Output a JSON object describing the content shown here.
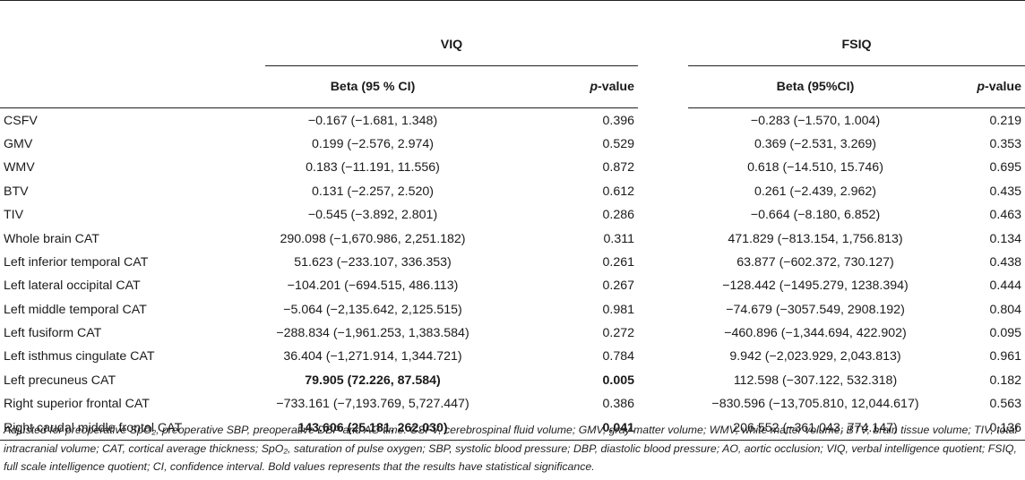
{
  "headers": {
    "group1": "VIQ",
    "group2": "FSIQ",
    "beta1": "Beta (95 % CI)",
    "pvalue1_prefix": "p",
    "pvalue1_suffix": "-value",
    "beta2": "Beta (95%CI)",
    "pvalue2_prefix": "p",
    "pvalue2_suffix": "-value"
  },
  "rows": [
    {
      "label": "CSFV",
      "viq_beta": "−0.167 (−1.681, 1.348)",
      "viq_p": "0.396",
      "fsiq_beta": "−0.283 (−1.570, 1.004)",
      "fsiq_p": "0.219"
    },
    {
      "label": "GMV",
      "viq_beta": "0.199 (−2.576, 2.974)",
      "viq_p": "0.529",
      "fsiq_beta": "0.369 (−2.531, 3.269)",
      "fsiq_p": "0.353"
    },
    {
      "label": "WMV",
      "viq_beta": "0.183 (−11.191, 11.556)",
      "viq_p": "0.872",
      "fsiq_beta": "0.618 (−14.510, 15.746)",
      "fsiq_p": "0.695"
    },
    {
      "label": "BTV",
      "viq_beta": "0.131 (−2.257, 2.520)",
      "viq_p": "0.612",
      "fsiq_beta": "0.261 (−2.439, 2.962)",
      "fsiq_p": "0.435"
    },
    {
      "label": "TIV",
      "viq_beta": "−0.545 (−3.892, 2.801)",
      "viq_p": "0.286",
      "fsiq_beta": "−0.664 (−8.180, 6.852)",
      "fsiq_p": "0.463"
    },
    {
      "label": "Whole brain CAT",
      "viq_beta": "290.098 (−1,670.986, 2,251.182)",
      "viq_p": "0.311",
      "fsiq_beta": "471.829 (−813.154, 1,756.813)",
      "fsiq_p": "0.134"
    },
    {
      "label": "Left inferior temporal CAT",
      "viq_beta": "51.623 (−233.107, 336.353)",
      "viq_p": "0.261",
      "fsiq_beta": "63.877 (−602.372, 730.127)",
      "fsiq_p": "0.438"
    },
    {
      "label": "Left lateral occipital CAT",
      "viq_beta": "−104.201 (−694.515, 486.113)",
      "viq_p": "0.267",
      "fsiq_beta": "−128.442 (−1495.279, 1238.394)",
      "fsiq_p": "0.444"
    },
    {
      "label": "Left middle temporal CAT",
      "viq_beta": "−5.064 (−2,135.642, 2,125.515)",
      "viq_p": "0.981",
      "fsiq_beta": "−74.679 (−3057.549, 2908.192)",
      "fsiq_p": "0.804"
    },
    {
      "label": "Left fusiform CAT",
      "viq_beta": "−288.834 (−1,961.253, 1,383.584)",
      "viq_p": "0.272",
      "fsiq_beta": "−460.896 (−1,344.694, 422.902)",
      "fsiq_p": "0.095"
    },
    {
      "label": "Left isthmus cingulate CAT",
      "viq_beta": "36.404 (−1,271.914, 1,344.721)",
      "viq_p": "0.784",
      "fsiq_beta": "9.942 (−2,023.929, 2,043.813)",
      "fsiq_p": "0.961"
    },
    {
      "label": "Left precuneus CAT",
      "viq_beta": "79.905 (72.226, 87.584)",
      "viq_p": "0.005",
      "fsiq_beta": "112.598 (−307.122, 532.318)",
      "fsiq_p": "0.182",
      "bold_viq": true
    },
    {
      "label": "Right superior frontal CAT",
      "viq_beta": "−733.161 (−7,193.769, 5,727.447)",
      "viq_p": "0.386",
      "fsiq_beta": "−830.596 (−13,705.810, 12,044.617)",
      "fsiq_p": "0.563"
    },
    {
      "label": "Right caudal middle frontal CAT",
      "viq_beta": "143.606 (25.181, 262.030)",
      "viq_p": "0.041",
      "fsiq_beta": "206.552 (−361.043, 774.147)",
      "fsiq_p": "0.136",
      "bold_viq": true
    }
  ],
  "footnote": "Adjusted for preoperative SpO₂, preoperative SBP, preoperative DBP and AO time. CSFV, cerebrospinal fluid volume; GMV, gray matter volume; WMV, white matter volume; BTV, brain tissue volume; TIV, total intracranial volume; CAT, cortical average thickness; SpO₂, saturation of pulse oxygen; SBP, systolic blood pressure; DBP, diastolic blood pressure; AO, aortic occlusion; VIQ, verbal intelligence quotient; FSIQ, full scale intelligence quotient; CI, confidence interval. Bold values represents that the results have statistical significance."
}
